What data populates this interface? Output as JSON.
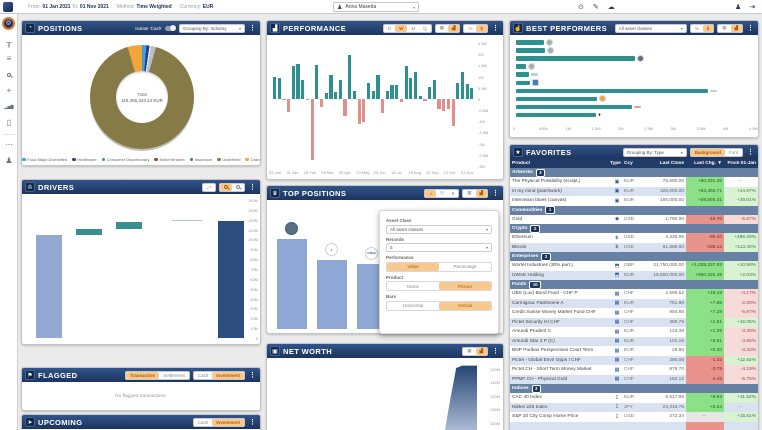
{
  "topbar": {
    "from_label": "From:",
    "from": "01 Jan 2021",
    "to_label": "To:",
    "to": "01 Nov 2021",
    "method_label": "Method:",
    "method": "Time Weighted",
    "currency_label": "Currency:",
    "currency": "EUR",
    "user": "Anna Maseda"
  },
  "sidebar": {
    "icons": [
      {
        "name": "hierarchy-icon",
        "glyph": "╥"
      },
      {
        "name": "list-icon",
        "glyph": "≡"
      },
      {
        "name": "search-icon",
        "glyph": "mag"
      },
      {
        "name": "add-icon",
        "glyph": "+"
      },
      {
        "name": "bar-chart-icon",
        "glyph": "▂▅▇"
      },
      {
        "name": "report-icon",
        "glyph": "▯"
      },
      {
        "name": "more-icon",
        "glyph": "⋯"
      },
      {
        "name": "profile-icon",
        "glyph": "♟"
      }
    ]
  },
  "panels": {
    "positions": {
      "title": "POSITIONS",
      "isolate_label": "Isolate 'Cash'",
      "grouping": "Grouping By: Industry",
      "total_label": "Total",
      "total_value": "119,455,343.14 EUR"
    },
    "performance": {
      "title": "PERFORMANCE",
      "d": "D",
      "w": "W",
      "m": "M",
      "q": "Q",
      "pct": "%",
      "cur": "$"
    },
    "best": {
      "title": "BEST PERFORMERS",
      "filter": "All asset classes",
      "pct": "%",
      "cur": "$"
    },
    "favorites": {
      "title": "FAVORITES",
      "grouping": "Grouping By: Type",
      "bg_btn": "Background",
      "font_btn": "Font",
      "columns": [
        "Product",
        "Type",
        "Ccy",
        "Last Close",
        "Last Chg. ▼",
        "From 01-Jan"
      ],
      "groups": [
        {
          "name": "Artworks",
          "count": "3",
          "icon": "▣",
          "rows": [
            {
              "product": "The Physical Possibility (sculpt.)",
              "ccy": "EUR",
              "close": "78,500.00",
              "chg": "+80,331.35",
              "from": "–"
            },
            {
              "product": "In my mind (patchwork)",
              "ccy": "EUR",
              "close": "325,000.00",
              "chg": "+83,494.71",
              "from": "+14.97%"
            },
            {
              "product": "Intervision blues (canvas)",
              "ccy": "EUR",
              "close": "185,000.00",
              "chg": "+59,550.31",
              "from": "+29.01%"
            }
          ]
        },
        {
          "name": "Commodities",
          "count": "1",
          "icon": "◆",
          "rows": [
            {
              "product": "Gold",
              "ccy": "USD",
              "close": "1,780.90",
              "chg": "-18.70",
              "from": "-5.87%"
            }
          ]
        },
        {
          "name": "Crypto",
          "count": "2",
          "icon": "฿",
          "rows": [
            {
              "product": "Ethereum",
              "ccy": "USD",
              "close": "4,325.65",
              "chg": "-89.10",
              "from": "+486.29%"
            },
            {
              "product": "Bitcoin",
              "ccy": "USD",
              "close": "61,888.60",
              "chg": "-338.13",
              "from": "+113.40%"
            }
          ]
        },
        {
          "name": "Enterprises",
          "count": "2",
          "icon": "⬒",
          "rows": [
            {
              "product": "Wortel Industries (30% part.)",
              "ccy": "GBP",
              "close": "21,750,000.00",
              "chg": "+1,038,237.93",
              "from": "+10.58%"
            },
            {
              "product": "UWAE Holding",
              "ccy": "EUR",
              "close": "19,550,000.00",
              "chg": "+650,325.49",
              "from": "+2.03%"
            }
          ]
        },
        {
          "name": "Funds",
          "count": "10",
          "icon": "▦",
          "rows": [
            {
              "product": "UBS (Lux) Bond Fund - CHF P",
              "ccy": "CHF",
              "close": "2,595.52",
              "chg": "+19.18",
              "from": "-4.17%"
            },
            {
              "product": "Carmignac Patrimoine A",
              "ccy": "EUR",
              "close": "751.86",
              "chg": "+7.86",
              "from": "-2.30%"
            },
            {
              "product": "Credit Suisse Money Market Fund CHF",
              "ccy": "CHF",
              "close": "954.88",
              "chg": "+7.28",
              "from": "-5.87%"
            },
            {
              "product": "Pictet Security HI CHF",
              "ccy": "CHF",
              "close": "389.79",
              "chg": "+1.61",
              "from": "+15.05%"
            },
            {
              "product": "Amundi Prudent C",
              "ccy": "EUR",
              "close": "123.39",
              "chg": "+1.39",
              "from": "-3.36%"
            },
            {
              "product": "Amundi Star 2 P (C)",
              "ccy": "EUR",
              "close": "101.16",
              "chg": "+0.91",
              "from": "-3.95%"
            },
            {
              "product": "BNP Paribas Perspectives Court Term",
              "ccy": "EUR",
              "close": "26.86",
              "chg": "+0.20",
              "from": "-3.42%"
            },
            {
              "product": "Pictet - Global Envir Opps I CHF",
              "ccy": "CHF",
              "close": "390.08",
              "chg": "-1.32",
              "from": "+12.82%"
            },
            {
              "product": "Pictet CH - Short Term Money Market",
              "ccy": "CHF",
              "close": "879.70",
              "chg": "-3.79",
              "from": "-4.19%"
            },
            {
              "product": "PPMF CH - Physical Gold",
              "ccy": "CHF",
              "close": "152.12",
              "chg": "-4.45",
              "from": "-5.75%"
            }
          ]
        },
        {
          "name": "Indices",
          "count": "3",
          "icon": "↧",
          "rows": [
            {
              "product": "CAC 40 Index",
              "ccy": "EUR",
              "close": "6,517.89",
              "chg": "+8.84",
              "from": "+11.52%"
            },
            {
              "product": "Nikkei 225 Index",
              "ccy": "JPY",
              "close": "23,418.76",
              "chg": "+0.24",
              "from": "–"
            },
            {
              "product": "S&P 20 City Comp Home Price",
              "ccy": "USD",
              "close": "272.34",
              "chg": "–",
              "from": "+15.51%"
            }
          ]
        }
      ]
    },
    "drivers": {
      "title": "DRIVERS"
    },
    "top_positions": {
      "title": "TOP POSITIONS",
      "overlay": {
        "asset_label": "Asset Class",
        "asset_value": "All asset classes",
        "records_label": "Records",
        "records_value": "5",
        "perf_label": "Performance",
        "value_btn": "Value",
        "pct_btn": "Percentage",
        "product_label": "Product",
        "name_btn": "Name",
        "picture_btn": "Picture",
        "bars_label": "Bars",
        "horiz_btn": "Horizontal",
        "vert_btn": "Vertical"
      }
    },
    "net_worth": {
      "title": "NET WORTH"
    },
    "flagged": {
      "title": "FLAGGED",
      "transaction_btn": "Transaction",
      "settlement_btn": "Settlement",
      "cash_btn": "Cash",
      "investment_btn": "Investment",
      "empty": "No flagged transactions."
    },
    "upcoming": {
      "title": "UPCOMING",
      "cash_btn": "Cash",
      "investment_btn": "Investment"
    }
  },
  "chart_data": [
    {
      "id": "positions-donut",
      "type": "pie",
      "title": "Positions grouped by Industry",
      "center_label": "Total",
      "center_value": "119,455,343.14 EUR",
      "slices": [
        {
          "label": "Cash",
          "color": "#f2a63a",
          "pct": 4.5
        },
        {
          "label": "Food Major Diversified",
          "color": "#3fa0d8",
          "pct": 1.3
        },
        {
          "label": "Healthcare",
          "color": "#2b3f8f",
          "pct": 1.0
        },
        {
          "label": "gap",
          "color": "#ffffff",
          "pct": 0.4
        },
        {
          "label": "Other small",
          "color": "#b9bfc6",
          "pct": 1.6
        },
        {
          "label": "Undefined",
          "color": "#867b46",
          "pct": 91.2
        }
      ],
      "legend": [
        {
          "label": "Food Major Diversified",
          "color": "#3fa0d8"
        },
        {
          "label": "Healthcare",
          "color": "#2b3f8f"
        },
        {
          "label": "Consumer Discretionary",
          "color": "#49a04c"
        },
        {
          "label": "MotorVehicles",
          "color": "#9c4a2c"
        },
        {
          "label": "Insurance",
          "color": "#2f8b5a"
        },
        {
          "label": "Undefined",
          "color": "#867b46"
        },
        {
          "label": "Cash",
          "color": "#f2a63a"
        }
      ]
    },
    {
      "id": "performance-weekly",
      "type": "bar",
      "ylabel": "EUR",
      "ylim": [
        -3,
        2.5
      ],
      "y_ticks": [
        "2.5M",
        "2M",
        "1.5M",
        "1M",
        "0.5M",
        "0",
        "-0.5M",
        "-1M",
        "-1.5M",
        "-2M",
        "-2.5M",
        "-3M"
      ],
      "x_labels": [
        "03 Jan",
        "31 Jan",
        "28 Feb",
        "28 Mar",
        "25 Apr",
        "23 May",
        "20 Jun",
        "18 Jul",
        "15 Aug",
        "12 Sep",
        "10 Oct",
        "01 Nov"
      ],
      "values_millions": [
        1.0,
        0.95,
        -0.07,
        -0.6,
        1.45,
        1.55,
        0.85,
        -0.05,
        -2.75,
        1.5,
        -0.35,
        0.25,
        1.05,
        0.3,
        0.85,
        -0.75,
        1.95,
        0.35,
        -1.1,
        -1.05,
        0.7,
        0.35,
        1.05,
        -0.65,
        0.35,
        0.6,
        0.6,
        -0.15,
        1.45,
        0.95,
        1.2,
        0.15,
        -0.1,
        0.55,
        0.85,
        -0.45,
        -0.55,
        -0.45,
        -1.2,
        0.7,
        1.2,
        0.65,
        0.5
      ],
      "pos_color": "#2f9090",
      "neg_color": "#e09089"
    },
    {
      "id": "best-performers",
      "type": "bar",
      "orientation": "horizontal",
      "xlim": [
        0,
        4500000
      ],
      "x_ticks": [
        "0",
        "500k",
        "1M",
        "1.5M",
        "2M",
        "2.5M",
        "3M",
        "3.5M",
        "4M",
        "4.5M"
      ],
      "values": [
        530000,
        550000,
        2260000,
        200000,
        240000,
        260000,
        3670000,
        1550000,
        2220000,
        1530000
      ],
      "end_icons": [
        "artwork-avatar",
        "artwork-avatar",
        "globe-avatar",
        "artwork-avatar",
        "tiny-label",
        "flag-avatar",
        "tiny-label",
        "bitcoin-avatar",
        "tiny-label-red",
        "ethereum-icon"
      ],
      "bar_color": "#2f9090"
    },
    {
      "id": "drivers-waterfall",
      "type": "bar",
      "subtype": "waterfall",
      "ylim": [
        0,
        140
      ],
      "y_ticks": [
        "140M",
        "130M",
        "120M",
        "110M",
        "100M",
        "90M",
        "80M",
        "70M",
        "60M",
        "50M",
        "40M",
        "30M",
        "20M",
        "10M",
        "0"
      ],
      "segments": [
        {
          "from": 0,
          "to": 104,
          "role": "start",
          "color": "#93a9d2"
        },
        {
          "from": 104,
          "to": 110.5,
          "role": "increase",
          "color": "#38918f"
        },
        {
          "from": 110.5,
          "to": 117.5,
          "role": "increase",
          "color": "#38918f"
        },
        {
          "from": 118.6,
          "to": 119.4,
          "role": "increase",
          "color": "#b7c3dc"
        },
        {
          "from": 0,
          "to": 119,
          "role": "total",
          "color": "#2c4d7d"
        }
      ]
    },
    {
      "id": "net-worth",
      "type": "area",
      "y_ticks": [
        "120M",
        "115M",
        "110M",
        "105M",
        "100M"
      ],
      "points_pct": [
        {
          "x": 84,
          "v": 0
        },
        {
          "x": 87,
          "v": 60
        },
        {
          "x": 90,
          "v": 115
        },
        {
          "x": 93,
          "v": 119
        },
        {
          "x": 100,
          "v": 119
        }
      ],
      "fill_top": "#1e3f6e",
      "fill_bottom": "#b9c7de"
    },
    {
      "id": "top-positions",
      "type": "bar",
      "bars": [
        {
          "avatar": "globe-avatar",
          "rel_height": 0.73
        },
        {
          "avatar": "red-logo-avatar",
          "rel_height": 0.56
        },
        {
          "avatar": "uwae-logo-avatar",
          "rel_height": 0.53
        }
      ]
    }
  ]
}
